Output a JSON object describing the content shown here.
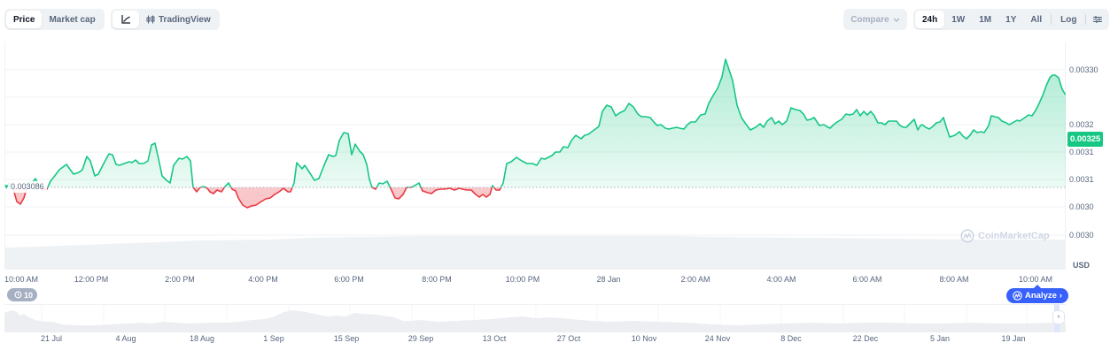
{
  "toolbar": {
    "view_tabs": [
      {
        "label": "Price",
        "active": true
      },
      {
        "label": "Market cap",
        "active": false
      }
    ],
    "chart_type": {
      "line_icon": "line-chart-icon",
      "tradingview_icon": "candlestick-icon",
      "tradingview_label": "TradingView"
    },
    "compare_label": "Compare",
    "ranges": [
      {
        "label": "24h",
        "active": true
      },
      {
        "label": "1W",
        "active": false
      },
      {
        "label": "1M",
        "active": false
      },
      {
        "label": "1Y",
        "active": false
      },
      {
        "label": "All",
        "active": false
      }
    ],
    "log_label": "Log",
    "settings_icon": "sliders-icon"
  },
  "chart": {
    "reference_price": "0.003086",
    "current_price": "0.00325",
    "currency": "USD",
    "y_ticks": [
      "0.00330",
      "0.00325",
      "0.0032",
      "0.0031",
      "0.0031",
      "0.0030",
      "0.0030"
    ],
    "x_ticks": [
      "10:00 AM",
      "12:00 PM",
      "2:00 PM",
      "4:00 PM",
      "6:00 PM",
      "8:00 PM",
      "10:00 PM",
      "28 Jan",
      "2:00 AM",
      "4:00 AM",
      "6:00 AM",
      "8:00 AM",
      "10:00 AM"
    ],
    "watermark": "CoinMarketCap",
    "up_color": "#16c784",
    "down_color": "#ea3943"
  },
  "badges": {
    "history_count": "10",
    "analyze_label": "Analyze"
  },
  "navigator": {
    "x_ticks": [
      "21 Jul",
      "4 Aug",
      "18 Aug",
      "1 Sep",
      "15 Sep",
      "29 Sep",
      "13 Oct",
      "27 Oct",
      "10 Nov",
      "24 Nov",
      "8 Dec",
      "22 Dec",
      "5 Jan",
      "19 Jan"
    ]
  }
}
